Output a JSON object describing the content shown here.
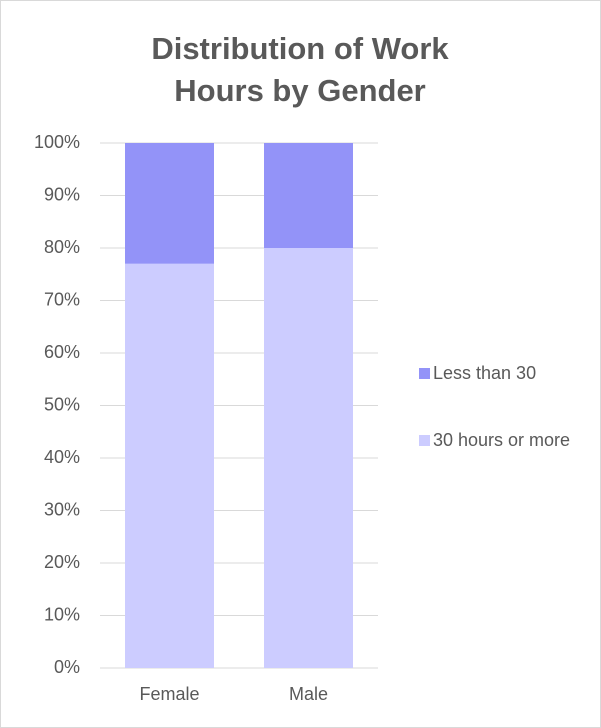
{
  "chart_data": {
    "type": "stacked_bar",
    "title": "Distribution of Work Hours by Gender",
    "categories": [
      "Female",
      "Male"
    ],
    "series": [
      {
        "name": "30 hours or more",
        "color": "#ccccff",
        "values": [
          77,
          80
        ]
      },
      {
        "name": "Less than 30",
        "color": "#9393f8",
        "values": [
          23,
          20
        ]
      }
    ],
    "ylim": [
      0,
      100
    ],
    "yticks": [
      {
        "value": 0,
        "label": "0%"
      },
      {
        "value": 10,
        "label": "10%"
      },
      {
        "value": 20,
        "label": "20%"
      },
      {
        "value": 30,
        "label": "30%"
      },
      {
        "value": 40,
        "label": "40%"
      },
      {
        "value": 50,
        "label": "50%"
      },
      {
        "value": 60,
        "label": "60%"
      },
      {
        "value": 70,
        "label": "70%"
      },
      {
        "value": 80,
        "label": "80%"
      },
      {
        "value": 90,
        "label": "90%"
      },
      {
        "value": 100,
        "label": "100%"
      }
    ],
    "grid": true,
    "legend": "right"
  }
}
